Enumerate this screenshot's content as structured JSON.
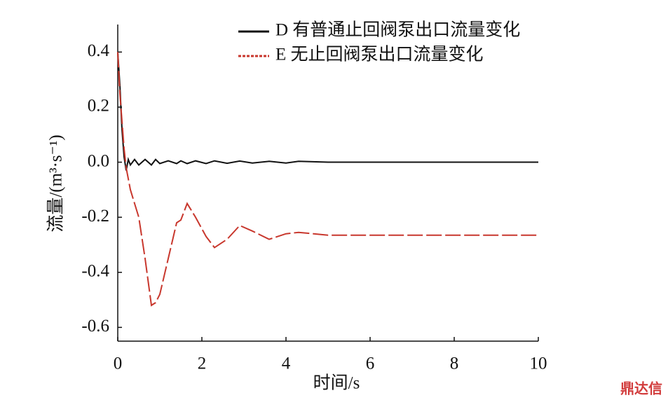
{
  "chart_data": {
    "type": "line",
    "x_label": "时间/s",
    "y_label": "流量/(m³·s⁻¹)",
    "x": [
      0,
      0.05,
      0.1,
      0.15,
      0.2,
      0.25,
      0.3,
      0.4,
      0.5,
      0.65,
      0.8,
      0.9,
      1.0,
      1.2,
      1.4,
      1.5,
      1.65,
      1.85,
      2.1,
      2.3,
      2.6,
      2.9,
      3.2,
      3.6,
      4.0,
      4.3,
      5,
      6,
      7,
      8,
      9,
      10
    ],
    "series": [
      {
        "name": "D 有普通止回阀泵出口流量变化",
        "color": "#111111",
        "dash": false,
        "values": [
          0.4,
          0.28,
          0.12,
          0.02,
          -0.03,
          0.01,
          -0.01,
          0.01,
          -0.01,
          0.01,
          -0.01,
          0.01,
          -0.005,
          0.005,
          -0.005,
          0.005,
          -0.005,
          0.005,
          -0.005,
          0.005,
          -0.004,
          0.004,
          -0.003,
          0.003,
          -0.003,
          0.003,
          0,
          0,
          0,
          0,
          0,
          0
        ]
      },
      {
        "name": "E 无止回阀泵出口流量变化",
        "color": "#c8372d",
        "dash": true,
        "values": [
          0.4,
          0.25,
          0.15,
          0.05,
          -0.02,
          -0.06,
          -0.1,
          -0.15,
          -0.2,
          -0.35,
          -0.52,
          -0.51,
          -0.48,
          -0.35,
          -0.22,
          -0.21,
          -0.15,
          -0.2,
          -0.27,
          -0.31,
          -0.28,
          -0.23,
          -0.25,
          -0.28,
          -0.26,
          -0.255,
          -0.265,
          -0.265,
          -0.265,
          -0.265,
          -0.265,
          -0.265
        ]
      }
    ],
    "xlim": [
      0,
      10
    ],
    "xticks": [
      0,
      2,
      4,
      6,
      8,
      10
    ],
    "ylim": [
      -0.65,
      0.5
    ],
    "yticks": [
      0.4,
      0.2,
      {
        "value": 0,
        "label": "0.0"
      },
      -0.2,
      -0.4,
      -0.6
    ],
    "legend": "upper-right",
    "watermark": "鼎达信"
  }
}
